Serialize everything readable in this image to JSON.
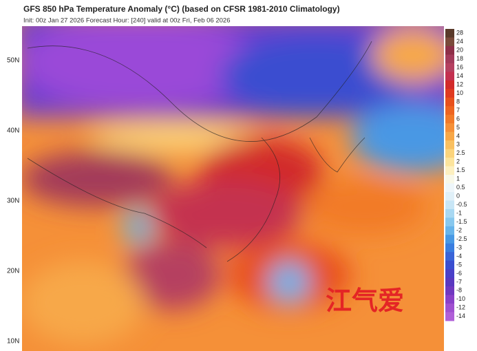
{
  "header": {
    "title": "GFS 850 hPa Temperature Anomaly (°C) (based on CFSR 1981-2010 Climatology)",
    "subtitle": "Init: 00z Jan 27 2026   Forecast Hour: [240]   valid at 00z Fri, Feb 06 2026"
  },
  "map": {
    "lat_labels": [
      "50N",
      "40N",
      "30N",
      "20N",
      "10N"
    ],
    "watermark": "江气爱"
  },
  "colorbar": {
    "labels": [
      "28",
      "24",
      "20",
      "18",
      "16",
      "14",
      "12",
      "10",
      "8",
      "7",
      "6",
      "5",
      "4",
      "3",
      "2.5",
      "2",
      "1.5",
      "1",
      "0.5",
      "0",
      "-0.5",
      "-1",
      "-1.5",
      "-2",
      "-2.5",
      "-3",
      "-4",
      "-5",
      "-6",
      "-7",
      "-8",
      "-10",
      "-12",
      "-14"
    ],
    "colors": [
      "#5a3a2a",
      "#7a4a3a",
      "#8e2f48",
      "#a33a5a",
      "#b54060",
      "#c43050",
      "#d22a2a",
      "#e03a20",
      "#e8501c",
      "#ee6420",
      "#f27a28",
      "#f59038",
      "#f7a848",
      "#f9c060",
      "#fbd47c",
      "#fce49c",
      "#fdf0c0",
      "#f8f8e8",
      "#eef6fa",
      "#e0f0f8",
      "#c8e6f6",
      "#a8d8f2",
      "#88c8ee",
      "#68b4ea",
      "#4898e4",
      "#3a7ee0",
      "#3a64d8",
      "#3a4ed0",
      "#4a40c8",
      "#5a38c0",
      "#7038c0",
      "#8a40c8",
      "#a050d0",
      "#b060d8"
    ]
  }
}
